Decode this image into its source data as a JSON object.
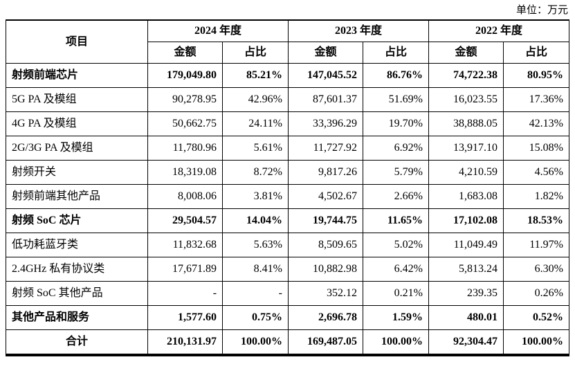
{
  "unit_label": "单位：万元",
  "table": {
    "item_header": "项目",
    "years": [
      {
        "label": "2024 年度",
        "amount": "金额",
        "ratio": "占比"
      },
      {
        "label": "2023 年度",
        "amount": "金额",
        "ratio": "占比"
      },
      {
        "label": "2022 年度",
        "amount": "金额",
        "ratio": "占比"
      }
    ],
    "rows": [
      {
        "label": "射频前端芯片",
        "bold": true,
        "align": "left",
        "values": [
          "179,049.80",
          "85.21%",
          "147,045.52",
          "86.76%",
          "74,722.38",
          "80.95%"
        ]
      },
      {
        "label": "5G PA 及模组",
        "bold": false,
        "align": "left",
        "values": [
          "90,278.95",
          "42.96%",
          "87,601.37",
          "51.69%",
          "16,023.55",
          "17.36%"
        ]
      },
      {
        "label": "4G PA 及模组",
        "bold": false,
        "align": "left",
        "values": [
          "50,662.75",
          "24.11%",
          "33,396.29",
          "19.70%",
          "38,888.05",
          "42.13%"
        ]
      },
      {
        "label": "2G/3G PA 及模组",
        "bold": false,
        "align": "left",
        "values": [
          "11,780.96",
          "5.61%",
          "11,727.92",
          "6.92%",
          "13,917.10",
          "15.08%"
        ]
      },
      {
        "label": "射频开关",
        "bold": false,
        "align": "left",
        "values": [
          "18,319.08",
          "8.72%",
          "9,817.26",
          "5.79%",
          "4,210.59",
          "4.56%"
        ]
      },
      {
        "label": "射频前端其他产品",
        "bold": false,
        "align": "left",
        "values": [
          "8,008.06",
          "3.81%",
          "4,502.67",
          "2.66%",
          "1,683.08",
          "1.82%"
        ]
      },
      {
        "label": "射频 SoC 芯片",
        "bold": true,
        "align": "left",
        "values": [
          "29,504.57",
          "14.04%",
          "19,744.75",
          "11.65%",
          "17,102.08",
          "18.53%"
        ]
      },
      {
        "label": "低功耗蓝牙类",
        "bold": false,
        "align": "left",
        "values": [
          "11,832.68",
          "5.63%",
          "8,509.65",
          "5.02%",
          "11,049.49",
          "11.97%"
        ]
      },
      {
        "label": "2.4GHz 私有协议类",
        "bold": false,
        "align": "left",
        "values": [
          "17,671.89",
          "8.41%",
          "10,882.98",
          "6.42%",
          "5,813.24",
          "6.30%"
        ]
      },
      {
        "label": "射频 SoC 其他产品",
        "bold": false,
        "align": "left",
        "values": [
          "-",
          "-",
          "352.12",
          "0.21%",
          "239.35",
          "0.26%"
        ]
      },
      {
        "label": "其他产品和服务",
        "bold": true,
        "align": "left",
        "values": [
          "1,577.60",
          "0.75%",
          "2,696.78",
          "1.59%",
          "480.01",
          "0.52%"
        ]
      },
      {
        "label": "合计",
        "bold": true,
        "align": "center",
        "values": [
          "210,131.97",
          "100.00%",
          "169,487.05",
          "100.00%",
          "92,304.47",
          "100.00%"
        ]
      }
    ]
  }
}
